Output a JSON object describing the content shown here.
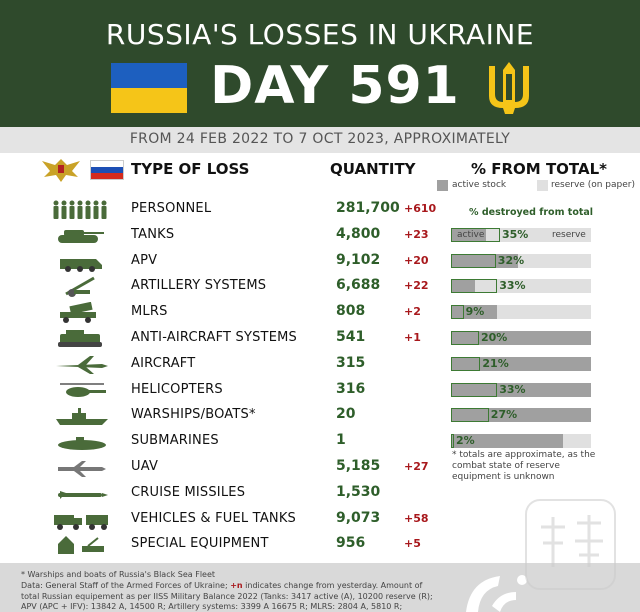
{
  "header": {
    "title": "RUSSIA'S LOSSES IN UKRAINE",
    "day_label": "DAY 591"
  },
  "subtitle": "FROM 24 FEB 2022 TO 7 OCT 2023, APPROXIMATELY",
  "columns": {
    "type": "TYPE OF LOSS",
    "quantity": "QUANTITY",
    "percent": "% FROM TOTAL*"
  },
  "legend": {
    "active": "active stock",
    "reserve": "reserve (on paper)"
  },
  "percent_caption": "% destroyed from total",
  "bar_inline_labels": {
    "active": "active",
    "reserve": "reserve"
  },
  "note": "* totals are approximate, as the combat state of reserve equipment is unknown",
  "colors": {
    "header_bg": "#2f4a2c",
    "quantity": "#2e5e2a",
    "delta": "#a8181c",
    "bar_active": "#a0a0a0",
    "bar_reserve": "#e0e0e0",
    "destroyed_outline": "#3d7a34"
  },
  "chart_data": {
    "type": "table",
    "title": "RUSSIA'S LOSSES IN UKRAINE",
    "rows": [
      {
        "name": "PERSONNEL",
        "icon": "soldiers-icon",
        "quantity": "281,700",
        "delta": "+610"
      },
      {
        "name": "TANKS",
        "icon": "tank-icon",
        "quantity": "4,800",
        "delta": "+23",
        "percent": "35%",
        "pct": 35,
        "active_share": 25
      },
      {
        "name": "APV",
        "icon": "apv-icon",
        "quantity": "9,102",
        "delta": "+20",
        "percent": "32%",
        "pct": 32,
        "active_share": 48
      },
      {
        "name": "ARTILLERY SYSTEMS",
        "icon": "artillery-icon",
        "quantity": "6,688",
        "delta": "+22",
        "percent": "33%",
        "pct": 33,
        "active_share": 17
      },
      {
        "name": "MLRS",
        "icon": "mlrs-icon",
        "quantity": "808",
        "delta": "+2",
        "percent": "9%",
        "pct": 9,
        "active_share": 33
      },
      {
        "name": "ANTI-AIRCRAFT SYSTEMS",
        "icon": "anti-aircraft-icon",
        "quantity": "541",
        "delta": "+1",
        "percent": "20%",
        "pct": 20,
        "active_share": 100
      },
      {
        "name": "AIRCRAFT",
        "icon": "aircraft-icon",
        "quantity": "315",
        "delta": "",
        "percent": "21%",
        "pct": 21,
        "active_share": 100
      },
      {
        "name": "HELICOPTERS",
        "icon": "helicopter-icon",
        "quantity": "316",
        "delta": "",
        "percent": "33%",
        "pct": 33,
        "active_share": 100
      },
      {
        "name": "WARSHIPS/BOATS*",
        "icon": "warship-icon",
        "quantity": "20",
        "delta": "",
        "percent": "27%",
        "pct": 27,
        "active_share": 100
      },
      {
        "name": "SUBMARINES",
        "icon": "submarine-icon",
        "quantity": "1",
        "delta": "",
        "percent": "2%",
        "pct": 2,
        "active_share": 80
      },
      {
        "name": "UAV",
        "icon": "uav-icon",
        "quantity": "5,185",
        "delta": "+27"
      },
      {
        "name": "CRUISE MISSILES",
        "icon": "cruise-missile-icon",
        "quantity": "1,530",
        "delta": ""
      },
      {
        "name": "VEHICLES & FUEL TANKS",
        "icon": "truck-icon",
        "quantity": "9,073",
        "delta": "+58"
      },
      {
        "name": "SPECIAL EQUIPMENT",
        "icon": "special-equipment-icon",
        "quantity": "956",
        "delta": "+5"
      }
    ]
  },
  "footer": {
    "line1": "* Warships and boats of Russia's Black Sea Fleet",
    "line2_pre": "Data: General Staff of the Armed Forces of Ukraine; ",
    "line2_red": "+n",
    "line2_post": " indicates change from yesterday. Amount of",
    "line3": "total Russian equipement as per IISS Military Balance 2022 (Tanks: 3417 active (A), 10200 reserve (R);",
    "line4": "APV (APC + IFV): 13842 A, 14500 R; Artillery systems: 3399 A 16675 R; MLRS: 2804 A, 5810 R;"
  }
}
